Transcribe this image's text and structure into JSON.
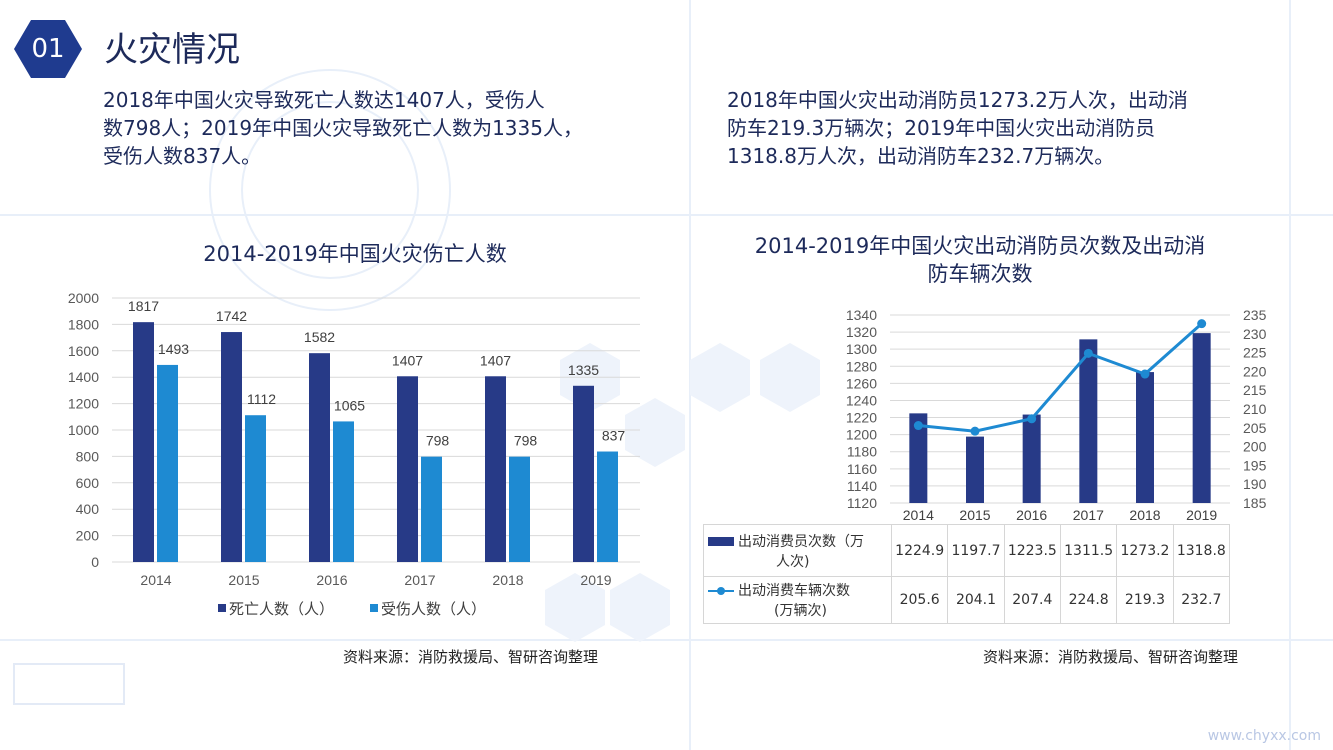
{
  "header": {
    "badge": "01",
    "title": "火灾情况"
  },
  "left_text": {
    "line1": "2018年中国火灾导致死亡人数达1407人，受伤人",
    "line2": "数798人；2019年中国火灾导致死亡人数为1335人，",
    "line3": "受伤人数837人。"
  },
  "right_text": {
    "line1": "2018年中国火灾出动消防员1273.2万人次，出动消",
    "line2": "防车219.3万辆次；2019年中国火灾出动消防员",
    "line3": "1318.8万人次，出动消防车232.7万辆次。"
  },
  "colors": {
    "navy": "#273a87",
    "blue": "#1e8ad2",
    "title": "#1d2a5a"
  },
  "chart_data": [
    {
      "type": "bar",
      "title": "2014-2019年中国火灾伤亡人数",
      "categories": [
        "2014",
        "2015",
        "2016",
        "2017",
        "2018",
        "2019"
      ],
      "series": [
        {
          "name": "死亡人数（人）",
          "values": [
            1817,
            1742,
            1582,
            1407,
            1407,
            1335
          ]
        },
        {
          "name": "受伤人数（人）",
          "values": [
            1493,
            1112,
            1065,
            798,
            798,
            837
          ]
        }
      ],
      "ylim": [
        0,
        2000
      ],
      "yticks": [
        0,
        200,
        400,
        600,
        800,
        1000,
        1200,
        1400,
        1600,
        1800,
        2000
      ],
      "grid": true,
      "legend": "bottom"
    },
    {
      "type": "bar",
      "title_line1": "2014-2019年中国火灾出动消防员次数及出动消",
      "title_line2": "防车辆次数",
      "categories": [
        "2014",
        "2015",
        "2016",
        "2017",
        "2018",
        "2019"
      ],
      "series": [
        {
          "name_line1": "出动消费员次数（万",
          "name_line2": "人次)",
          "type": "bar",
          "axis": "left",
          "values": [
            1224.9,
            1197.7,
            1223.5,
            1311.5,
            1273.2,
            1318.8
          ]
        },
        {
          "name_line1": "出动消费车辆次数",
          "name_line2": "(万辆次)",
          "type": "line",
          "axis": "right",
          "values": [
            205.6,
            204.1,
            207.4,
            224.8,
            219.3,
            232.7
          ]
        }
      ],
      "ylim_left": [
        1120,
        1340
      ],
      "yticks_left": [
        1120,
        1140,
        1160,
        1180,
        1200,
        1220,
        1240,
        1260,
        1280,
        1300,
        1320,
        1340
      ],
      "ylim_right": [
        185,
        235
      ],
      "yticks_right": [
        185,
        190,
        195,
        200,
        205,
        210,
        215,
        220,
        225,
        230,
        235
      ],
      "grid": true,
      "legend": "data table below chart"
    }
  ],
  "source_left": "资料来源：消防救援局、智研咨询整理",
  "source_right": "资料来源：消防救援局、智研咨询整理",
  "footer_url": "www.chyxx.com"
}
